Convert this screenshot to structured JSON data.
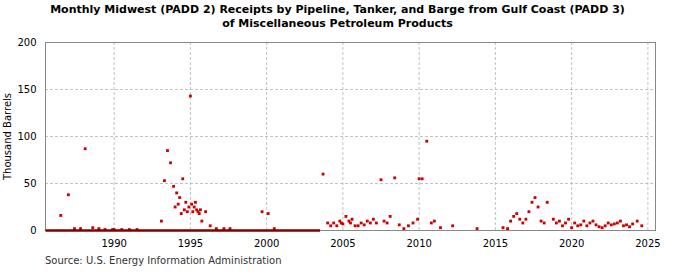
{
  "chart_data": {
    "type": "scatter",
    "title": "Monthly Midwest (PADD 2) Receipts by Pipeline, Tanker, and Barge from Gulf Coast (PADD 3)\nof Miscellaneous Petroleum Products",
    "ylabel": "Thousand Barrels",
    "annotations": [
      "Source: U.S. Energy Information Administration"
    ],
    "xlim": [
      1985.5,
      2025.5
    ],
    "ylim": [
      0,
      200
    ],
    "xticks": [
      1990,
      1995,
      2000,
      2005,
      2010,
      2015,
      2020,
      2025
    ],
    "yticks": [
      0,
      50,
      100,
      150,
      200
    ],
    "grid": true,
    "series": [
      {
        "type": "scatter",
        "color": "#cc0000",
        "marker": "square",
        "x": [
          1986.5,
          1987.0,
          1987.4,
          1987.8,
          1988.1,
          1988.6,
          1989.0,
          1989.4,
          1989.9,
          1990.0,
          1990.5,
          1991.0,
          1991.5,
          1993.1,
          1993.3,
          1993.5,
          1993.7,
          1993.9,
          1994.0,
          1994.1,
          1994.2,
          1994.3,
          1994.4,
          1994.5,
          1994.6,
          1994.7,
          1994.8,
          1994.9,
          1995.0,
          1995.08,
          1995.16,
          1995.25,
          1995.33,
          1995.41,
          1995.5,
          1995.58,
          1995.66,
          1995.75,
          1996.0,
          1996.3,
          1996.7,
          1997.2,
          1997.6,
          1999.7,
          2000.1,
          2000.5,
          2003.7,
          2004.0,
          2004.2,
          2004.4,
          2004.6,
          2004.8,
          2004.9,
          2005.0,
          2005.2,
          2005.4,
          2005.5,
          2005.6,
          2005.8,
          2006.0,
          2006.2,
          2006.4,
          2006.6,
          2006.8,
          2007.0,
          2007.2,
          2007.5,
          2007.7,
          2007.9,
          2008.1,
          2008.4,
          2008.7,
          2009.0,
          2009.3,
          2009.6,
          2009.9,
          2010.0,
          2010.2,
          2010.5,
          2010.8,
          2011.0,
          2011.4,
          2012.2,
          2013.8,
          2015.5,
          2015.8,
          2016.0,
          2016.2,
          2016.4,
          2016.6,
          2016.8,
          2017.0,
          2017.2,
          2017.4,
          2017.6,
          2017.8,
          2018.0,
          2018.2,
          2018.4,
          2018.8,
          2019.0,
          2019.2,
          2019.4,
          2019.6,
          2019.8,
          2020.0,
          2020.2,
          2020.4,
          2020.6,
          2020.8,
          2021.0,
          2021.2,
          2021.4,
          2021.6,
          2021.8,
          2022.0,
          2022.2,
          2022.4,
          2022.6,
          2022.8,
          2023.0,
          2023.2,
          2023.4,
          2023.6,
          2023.8,
          2024.0,
          2024.3,
          2024.6
        ],
        "values": [
          16,
          38,
          2,
          2,
          87,
          3,
          2,
          1,
          1,
          1,
          1,
          1,
          1,
          10,
          53,
          85,
          72,
          47,
          25,
          40,
          28,
          35,
          18,
          55,
          22,
          30,
          20,
          25,
          143,
          28,
          20,
          25,
          30,
          22,
          20,
          18,
          22,
          10,
          20,
          5,
          2,
          2,
          2,
          20,
          18,
          2,
          60,
          8,
          5,
          8,
          5,
          10,
          8,
          7,
          15,
          10,
          8,
          12,
          5,
          5,
          8,
          6,
          10,
          8,
          12,
          8,
          54,
          10,
          8,
          15,
          56,
          6,
          2,
          5,
          8,
          12,
          55,
          55,
          95,
          8,
          10,
          3,
          5,
          2,
          3,
          2,
          10,
          15,
          18,
          12,
          8,
          12,
          20,
          30,
          35,
          25,
          10,
          8,
          30,
          12,
          8,
          10,
          5,
          8,
          12,
          3,
          8,
          5,
          6,
          10,
          5,
          8,
          10,
          6,
          4,
          3,
          5,
          8,
          6,
          7,
          8,
          10,
          5,
          6,
          4,
          7,
          10,
          5
        ]
      },
      {
        "type": "line",
        "color": "#800000",
        "x": [
          1985.5,
          2003.5
        ],
        "values": [
          0,
          0
        ]
      }
    ]
  }
}
